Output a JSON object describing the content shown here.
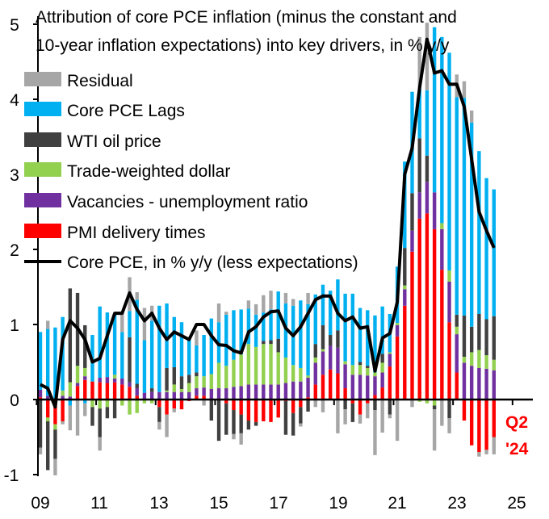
{
  "chart_data": {
    "type": "bar",
    "stacked": true,
    "title_lines": [
      "Attribution of core PCE inflation (minus the constant and",
      "10-year inflation expectations) into key drivers, in % y/y"
    ],
    "xlabel": "",
    "ylabel": "",
    "ylim": [
      -1,
      5
    ],
    "y_ticks": [
      "5",
      "4",
      "3",
      "2",
      "1",
      "0",
      "-1"
    ],
    "x_ticks": [
      "09",
      "11",
      "13",
      "15",
      "17",
      "19",
      "21",
      "23",
      "25"
    ],
    "grid": false,
    "legend_position": "top-left",
    "annotation": {
      "line1": "Q2",
      "line2": "'24",
      "color": "#ff0000"
    },
    "x": [
      "2009Q1",
      "2009Q2",
      "2009Q3",
      "2009Q4",
      "2010Q1",
      "2010Q2",
      "2010Q3",
      "2010Q4",
      "2011Q1",
      "2011Q2",
      "2011Q3",
      "2011Q4",
      "2012Q1",
      "2012Q2",
      "2012Q3",
      "2012Q4",
      "2013Q1",
      "2013Q2",
      "2013Q3",
      "2013Q4",
      "2014Q1",
      "2014Q2",
      "2014Q3",
      "2014Q4",
      "2015Q1",
      "2015Q2",
      "2015Q3",
      "2015Q4",
      "2016Q1",
      "2016Q2",
      "2016Q3",
      "2016Q4",
      "2017Q1",
      "2017Q2",
      "2017Q3",
      "2017Q4",
      "2018Q1",
      "2018Q2",
      "2018Q3",
      "2018Q4",
      "2019Q1",
      "2019Q2",
      "2019Q3",
      "2019Q4",
      "2020Q1",
      "2020Q2",
      "2020Q3",
      "2020Q4",
      "2021Q1",
      "2021Q2",
      "2021Q3",
      "2021Q4",
      "2022Q1",
      "2022Q2",
      "2022Q3",
      "2022Q4",
      "2023Q1",
      "2023Q2",
      "2023Q3",
      "2023Q4",
      "2024Q1",
      "2024Q2"
    ],
    "legend": [
      {
        "name": "Residual",
        "color": "#a6a6a6"
      },
      {
        "name": "Core PCE Lags",
        "color": "#00b0f0"
      },
      {
        "name": "WTI oil price",
        "color": "#404040"
      },
      {
        "name": "Trade-weighted dollar",
        "color": "#92d050"
      },
      {
        "name": "Vacancies - unemployment ratio",
        "color": "#7030a0"
      },
      {
        "name": "PMI delivery times",
        "color": "#ff0000"
      },
      {
        "name": "Core PCE, in % y/y (less expectations)",
        "color": "#000000"
      }
    ],
    "series": [
      {
        "name": "PMI delivery times",
        "color": "#ff0000",
        "values": [
          0.03,
          -0.24,
          -0.33,
          -0.29,
          0,
          0.18,
          0.26,
          0.24,
          0.23,
          0.22,
          0.23,
          0.2,
          0.17,
          0.05,
          0,
          0,
          -0.1,
          -0.2,
          -0.12,
          -0.13,
          -0.02,
          0.05,
          0.05,
          0,
          0,
          -0.05,
          -0.14,
          -0.2,
          -0.28,
          -0.3,
          -0.29,
          -0.3,
          -0.24,
          -0.02,
          -0.18,
          -0.1,
          0.03,
          0.2,
          0.33,
          0.4,
          0.35,
          0.15,
          -0.05,
          -0.2,
          -0.05,
          0.06,
          0.16,
          0.44,
          0.84,
          1.25,
          1.97,
          2.41,
          2.48,
          2.27,
          1.73,
          1.03,
          0.36,
          -0.28,
          -0.61,
          -0.7,
          -0.67,
          -0.5
        ]
      },
      {
        "name": "Vacancies - unemployment ratio",
        "color": "#7030a0",
        "values": [
          0.1,
          0.05,
          0,
          0.05,
          0.04,
          0.04,
          0.05,
          0,
          0.06,
          0.08,
          0.05,
          0.08,
          0.06,
          0.1,
          0.09,
          0.1,
          0.1,
          0.1,
          0.1,
          0.1,
          0.1,
          0.1,
          0.11,
          0.14,
          0.15,
          0.15,
          0.17,
          0.18,
          0.2,
          0.2,
          0.2,
          0.2,
          0.2,
          0.22,
          0.24,
          0.24,
          0.26,
          0.29,
          0.31,
          0.32,
          0.34,
          0.32,
          0.33,
          0.33,
          0.32,
          0.25,
          0.2,
          0.17,
          0.15,
          0.22,
          0.28,
          0.35,
          0.42,
          0.49,
          0.54,
          0.54,
          0.51,
          0.49,
          0.45,
          0.42,
          0.41,
          0.39
        ]
      },
      {
        "name": "Trade-weighted dollar",
        "color": "#92d050",
        "values": [
          0,
          -0.05,
          -0.07,
          0.07,
          0.19,
          0.23,
          0.11,
          -0.1,
          -0.12,
          -0.1,
          0.05,
          -0.08,
          -0.2,
          -0.18,
          -0.05,
          -0.05,
          0,
          0.02,
          0.1,
          0.04,
          0.12,
          0.16,
          0.15,
          0.2,
          0.34,
          0.3,
          0.36,
          0.42,
          0.54,
          0.5,
          0.54,
          0.54,
          0.43,
          0.34,
          0.22,
          0.18,
          0.03,
          0.07,
          0.03,
          0,
          0,
          0.04,
          0.13,
          0.13,
          0.1,
          0.05,
          0.13,
          0.02,
          0.03,
          0.05,
          0,
          -0.03,
          -0.05,
          -0.08,
          0.08,
          0.15,
          0.1,
          0.08,
          0.18,
          0.24,
          0.18,
          0.14
        ]
      },
      {
        "name": "WTI oil price",
        "color": "#404040",
        "values": [
          -0.64,
          -0.65,
          -0.39,
          0,
          1.25,
          0.97,
          0.57,
          -0.25,
          -0.38,
          -0.15,
          -0.25,
          0,
          0.6,
          0.06,
          0,
          0.05,
          -0.2,
          0.3,
          0.23,
          0.17,
          0.11,
          0.05,
          0,
          -0.28,
          -0.55,
          -0.42,
          -0.32,
          -0.25,
          -0.12,
          -0.05,
          0.04,
          0.05,
          0.18,
          -0.45,
          -0.3,
          -0.22,
          -0.16,
          0.18,
          0.32,
          0.14,
          0.23,
          -0.13,
          -0.25,
          0.04,
          0.03,
          -0.14,
          0.12,
          -0.2,
          0,
          0.5,
          0.5,
          0.72,
          0.35,
          -0.05,
          0,
          -0.25,
          0.16,
          0.55,
          0.34,
          0.48,
          0.48,
          0.58
        ]
      },
      {
        "name": "Core PCE Lags",
        "color": "#00b0f0",
        "values": [
          0.77,
          0.89,
          0.96,
          0.98,
          -0.08,
          0,
          -0.05,
          0.62,
          0.95,
          0.86,
          0.81,
          0.62,
          0.35,
          1.12,
          0.7,
          0.9,
          1.15,
          0.86,
          0.67,
          0.72,
          0.48,
          0.36,
          0.55,
          0.74,
          0.54,
          0.68,
          0.66,
          0.6,
          0.47,
          0.43,
          0.38,
          0.41,
          0.63,
          0.72,
          0.79,
          0.9,
          0.95,
          0.66,
          0.54,
          0.59,
          0.68,
          0.9,
          0.95,
          0.72,
          0.74,
          0.76,
          0.63,
          0.51,
          0.75,
          1.15,
          1.35,
          0.65,
          0.87,
          2.2,
          2.48,
          2.9,
          2.9,
          2.9,
          2.72,
          2.17,
          1.88,
          1.69
        ]
      },
      {
        "name": "Residual",
        "color": "#a6a6a6",
        "values": [
          -0.09,
          0.11,
          -0.22,
          -0.04,
          -0.33,
          -0.48,
          -0.17,
          0,
          -0.18,
          0,
          0,
          0.25,
          0.45,
          0.1,
          0.43,
          0.2,
          -0.1,
          -0.3,
          -0.05,
          0,
          0.02,
          0.2,
          -0.08,
          0,
          0.25,
          0.04,
          -0.07,
          -0.15,
          0.11,
          0.14,
          0.23,
          0.25,
          0,
          0.14,
          0.09,
          -0.04,
          0.15,
          -0.1,
          -0.17,
          0,
          -0.45,
          -0.2,
          0,
          -0.12,
          -0.2,
          -0.6,
          -0.44,
          -0.05,
          -0.55,
          0,
          -0.1,
          0.7,
          0.9,
          -0.55,
          -0.35,
          -0.2,
          0.3,
          0.22,
          0.16,
          -0.06,
          -0.06,
          -0.23
        ]
      }
    ],
    "line": {
      "name": "Core PCE, in % y/y (less expectations)",
      "color": "#000000",
      "values": [
        0.2,
        0.15,
        -0.1,
        0.8,
        1.05,
        0.95,
        0.8,
        0.5,
        0.55,
        0.85,
        1.15,
        1.15,
        1.42,
        1.2,
        1.05,
        1.15,
        0.95,
        0.8,
        0.9,
        0.85,
        0.8,
        1.0,
        1.0,
        0.85,
        0.73,
        0.72,
        0.65,
        0.62,
        0.9,
        0.97,
        1.1,
        1.17,
        1.18,
        0.95,
        0.85,
        0.97,
        1.15,
        1.33,
        1.38,
        1.38,
        1.15,
        1.05,
        1.1,
        0.95,
        0.97,
        0.38,
        0.82,
        0.88,
        1.3,
        3.0,
        3.35,
        4.15,
        4.8,
        4.35,
        4.38,
        4.2,
        4.2,
        3.9,
        3.2,
        2.5,
        2.25,
        2.02
      ]
    }
  }
}
